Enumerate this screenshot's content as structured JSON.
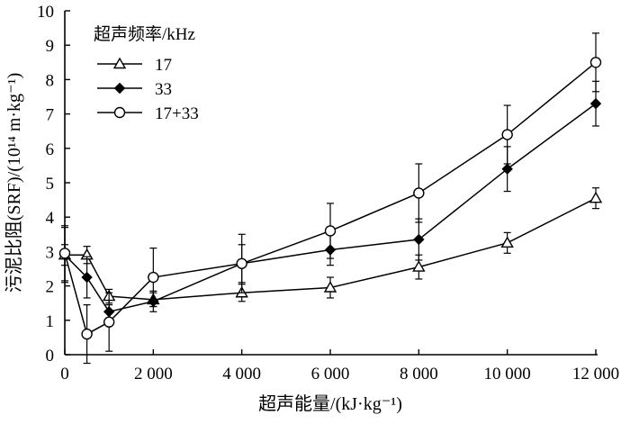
{
  "chart_data": {
    "type": "line",
    "xlabel": "超声能量/(kJ·kg⁻¹)",
    "ylabel": "污泥比阻(SRF)/(10¹⁴ m·kg⁻¹)",
    "xlim": [
      0,
      12000
    ],
    "ylim": [
      0,
      10
    ],
    "x_ticks": [
      0,
      2000,
      4000,
      6000,
      8000,
      10000,
      12000
    ],
    "x_tick_labels": [
      "0",
      "2 000",
      "4 000",
      "6 000",
      "8 000",
      "10 000",
      "12 000"
    ],
    "y_ticks": [
      0,
      1,
      2,
      3,
      4,
      5,
      6,
      7,
      8,
      9,
      10
    ],
    "y_tick_labels": [
      "0",
      "1",
      "2",
      "3",
      "4",
      "5",
      "6",
      "7",
      "8",
      "9",
      "10"
    ],
    "grid": false,
    "legend_title": "超声频率/kHz",
    "legend_position": "top-left",
    "series": [
      {
        "name": "17",
        "marker": "open-triangle",
        "x": [
          0,
          500,
          1000,
          2000,
          4000,
          6000,
          8000,
          10000,
          12000
        ],
        "y": [
          2.9,
          2.9,
          1.7,
          1.6,
          1.8,
          1.95,
          2.55,
          3.25,
          4.55
        ],
        "err": [
          0.3,
          0.25,
          0.2,
          0.2,
          0.25,
          0.3,
          0.35,
          0.3,
          0.3
        ]
      },
      {
        "name": "33",
        "marker": "filled-diamond",
        "x": [
          0,
          500,
          1000,
          2000,
          4000,
          6000,
          8000,
          10000,
          12000
        ],
        "y": [
          2.9,
          2.25,
          1.25,
          1.55,
          2.65,
          3.05,
          3.35,
          5.4,
          7.3
        ],
        "err": [
          0.8,
          0.6,
          0.2,
          0.3,
          0.55,
          0.45,
          0.6,
          0.65,
          0.65
        ]
      },
      {
        "name": "17+33",
        "marker": "open-circle",
        "x": [
          0,
          500,
          1000,
          2000,
          4000,
          6000,
          8000,
          10000,
          12000
        ],
        "y": [
          2.95,
          0.6,
          0.95,
          2.25,
          2.65,
          3.6,
          4.7,
          6.4,
          8.5
        ],
        "err": [
          0.8,
          0.85,
          0.85,
          0.85,
          0.85,
          0.8,
          0.85,
          0.85,
          0.85
        ]
      }
    ]
  }
}
